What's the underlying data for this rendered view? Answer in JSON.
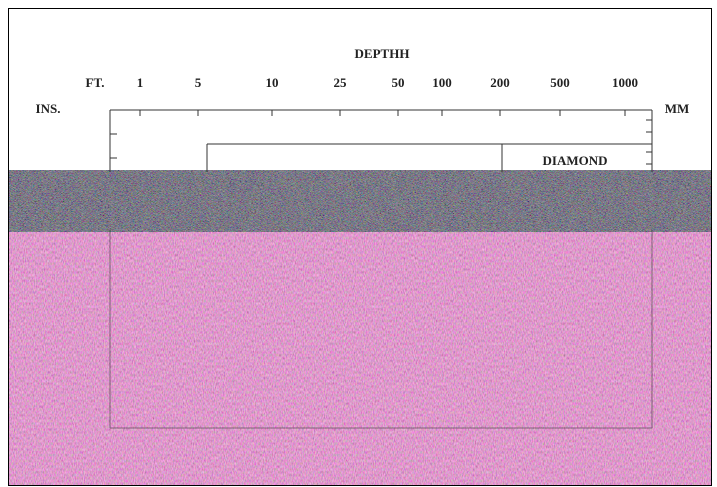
{
  "header": {
    "title": "DEPTHH"
  },
  "scale": {
    "ft_label": "FT.",
    "ticks": [
      "1",
      "5",
      "10",
      "25",
      "50",
      "100",
      "200",
      "500",
      "1000"
    ],
    "ins_label": "INS.",
    "mm_label": "MM"
  },
  "box": {
    "label": "DIAMOND"
  }
}
